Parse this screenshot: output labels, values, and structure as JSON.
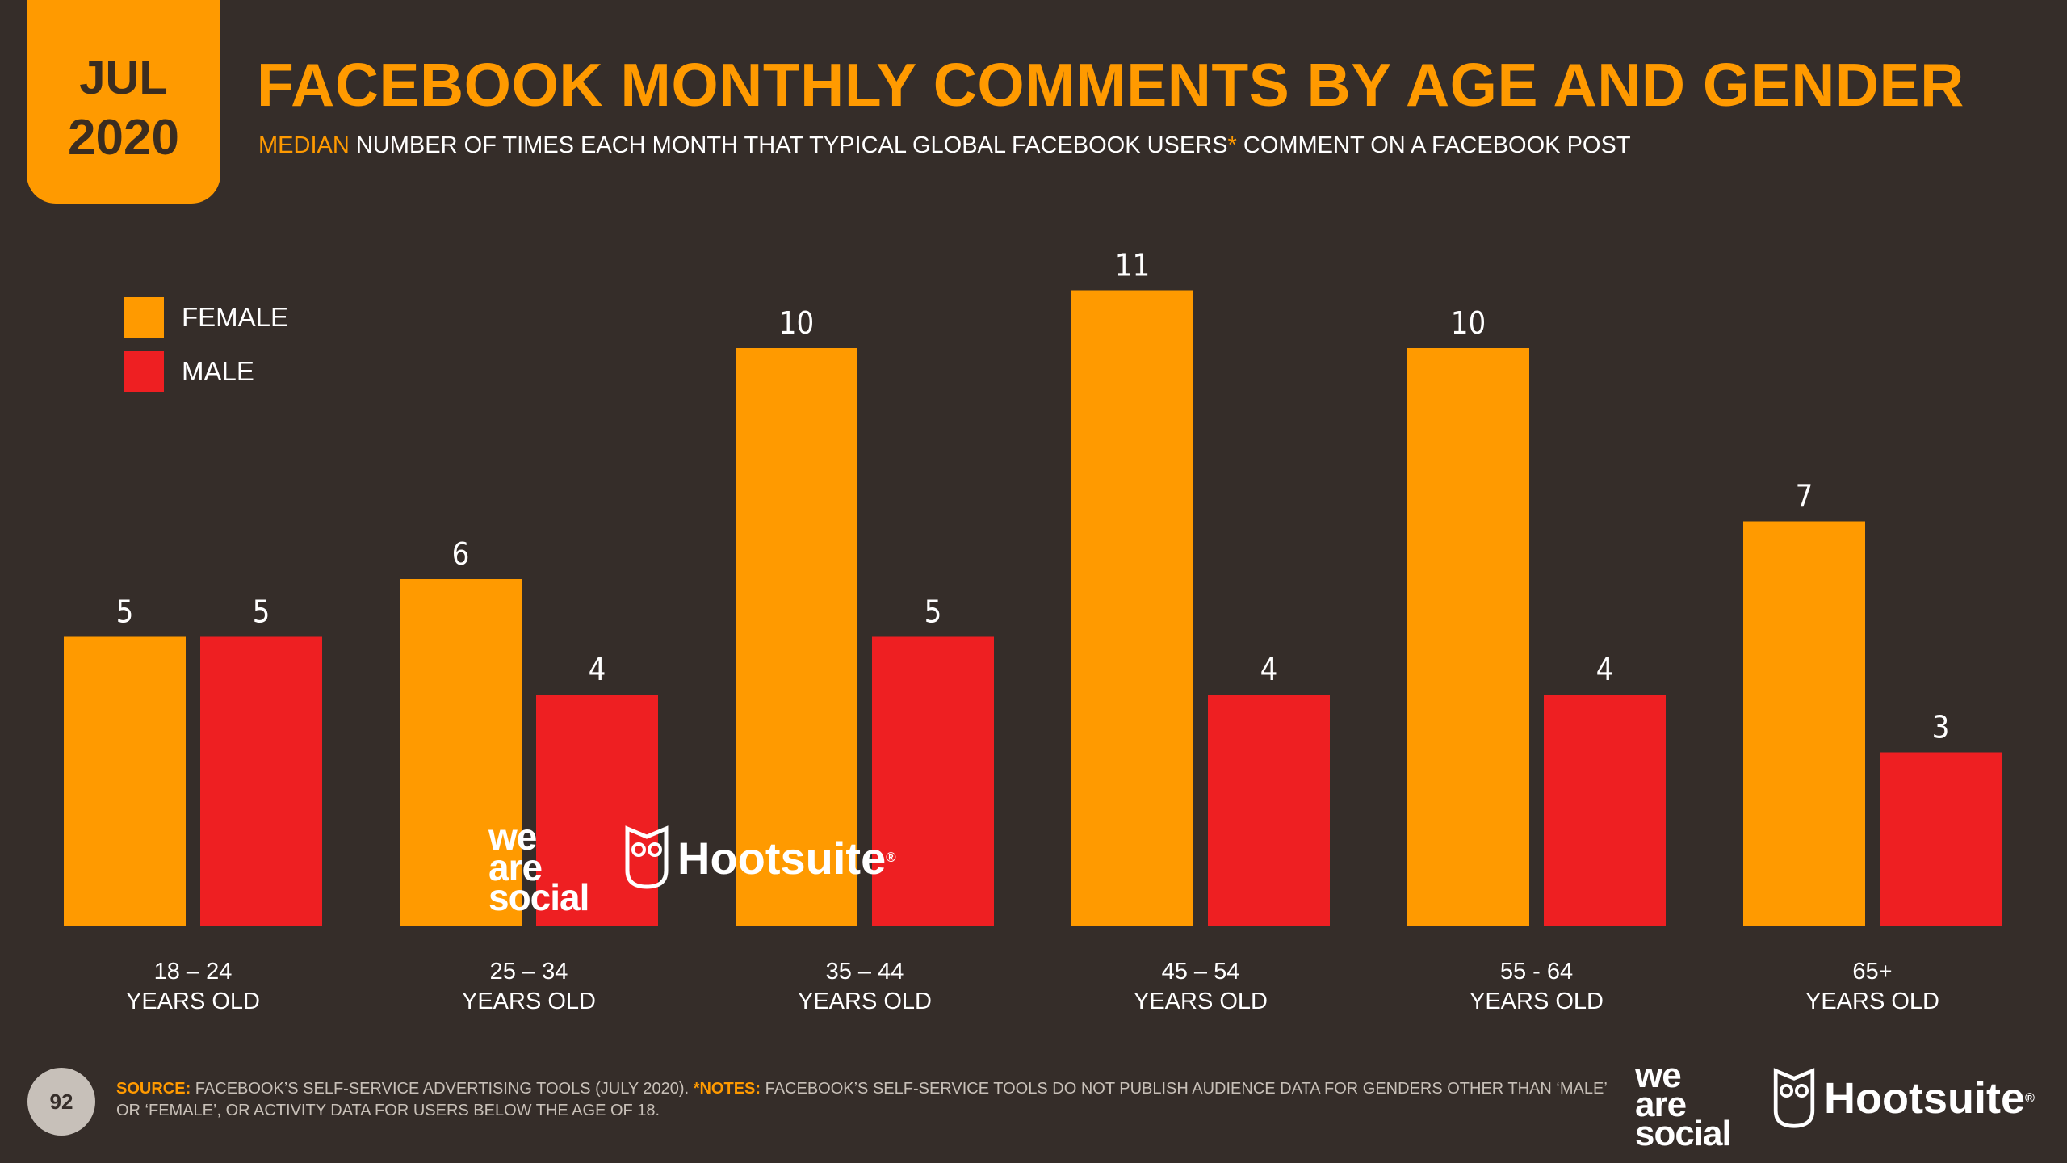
{
  "badge": {
    "month": "JUL",
    "year": "2020"
  },
  "header": {
    "title": "FACEBOOK MONTHLY COMMENTS BY AGE AND GENDER",
    "subtitle_accent": "MEDIAN",
    "subtitle_main": " NUMBER OF TIMES EACH MONTH THAT TYPICAL GLOBAL FACEBOOK USERS",
    "subtitle_star": "*",
    "subtitle_tail": " COMMENT ON A FACEBOOK POST"
  },
  "colors": {
    "female": "#ff9a00",
    "male": "#ee1f22",
    "background": "#352d29",
    "accent": "#ff9a00"
  },
  "chart_data": {
    "type": "bar",
    "title": "FACEBOOK MONTHLY COMMENTS BY AGE AND GENDER",
    "categories": [
      {
        "line1": "18 – 24",
        "line2": "YEARS OLD"
      },
      {
        "line1": "25 – 34",
        "line2": "YEARS OLD"
      },
      {
        "line1": "35 – 44",
        "line2": "YEARS OLD"
      },
      {
        "line1": "45 – 54",
        "line2": "YEARS OLD"
      },
      {
        "line1": "55 - 64",
        "line2": "YEARS OLD"
      },
      {
        "line1": "65+",
        "line2": "YEARS OLD"
      }
    ],
    "series": [
      {
        "name": "FEMALE",
        "values": [
          5,
          6,
          10,
          11,
          10,
          7
        ]
      },
      {
        "name": "MALE",
        "values": [
          5,
          4,
          5,
          4,
          4,
          3
        ]
      }
    ],
    "ylim": [
      0,
      11
    ],
    "xlabel": "",
    "ylabel": "",
    "legend_position": "top-left",
    "grid": false
  },
  "logos": {
    "was_line1": "we",
    "was_line2": "are",
    "was_line3": "social",
    "hootsuite": "Hootsuite",
    "registered": "®"
  },
  "footer": {
    "page_number": "92",
    "source_label": "SOURCE:",
    "source_text": " FACEBOOK’S SELF-SERVICE ADVERTISING TOOLS (JULY 2020). ",
    "notes_label": "*NOTES:",
    "notes_text": " FACEBOOK’S SELF-SERVICE TOOLS DO NOT PUBLISH AUDIENCE DATA FOR GENDERS OTHER THAN ‘MALE’ OR ‘FEMALE’, OR ACTIVITY DATA FOR USERS BELOW THE AGE OF 18."
  }
}
